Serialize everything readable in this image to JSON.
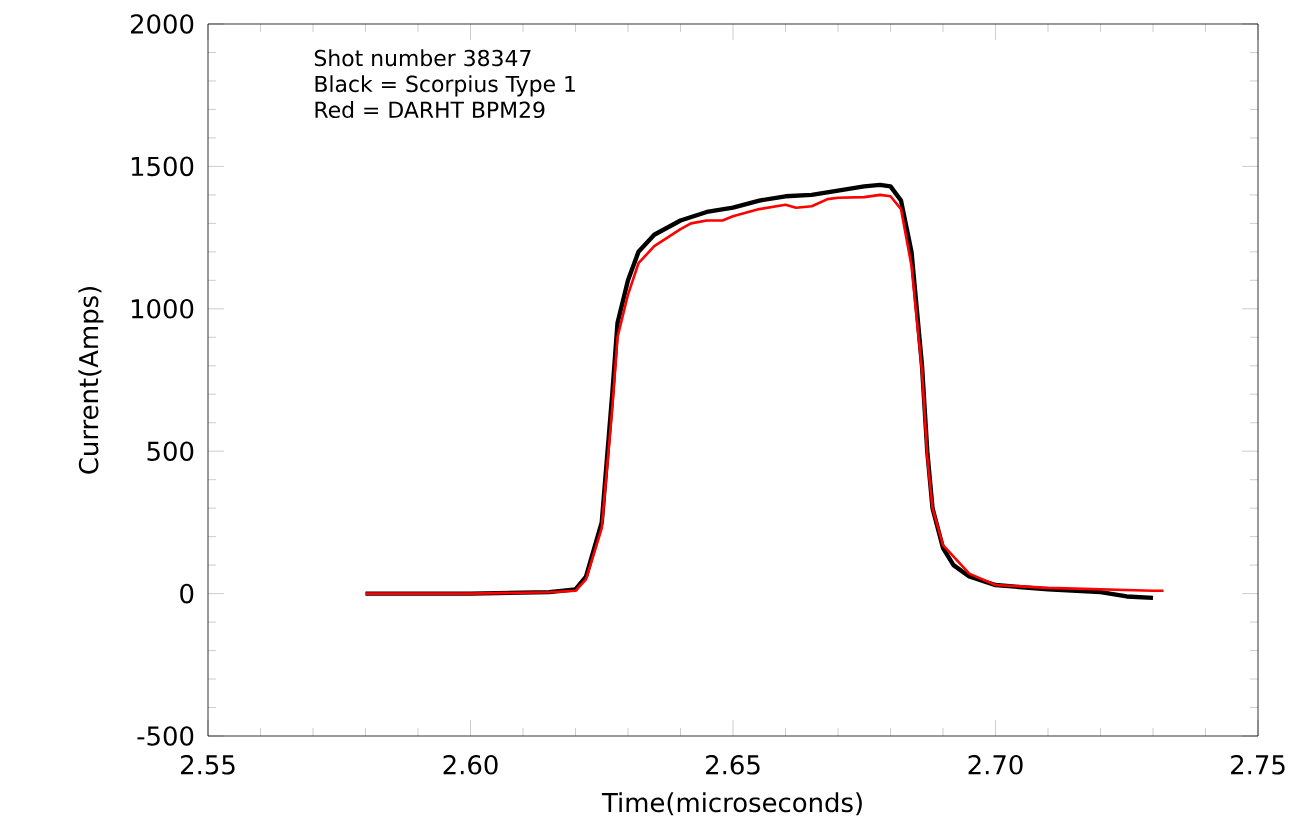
{
  "chart_data": {
    "type": "line",
    "xlabel": "Time(microseconds)",
    "ylabel": "Current(Amps)",
    "annotations": [
      "Shot number 38347",
      "Black = Scorpius Type 1",
      "Red = DARHT BPM29"
    ],
    "xlim": [
      2.55,
      2.75
    ],
    "xticks": [
      {
        "value": 2.55,
        "label": "2.55"
      },
      {
        "value": 2.6,
        "label": "2.60"
      },
      {
        "value": 2.65,
        "label": "2.65"
      },
      {
        "value": 2.7,
        "label": "2.70"
      },
      {
        "value": 2.75,
        "label": "2.75"
      }
    ],
    "ylim": [
      -500,
      2000
    ],
    "yticks": [
      -500,
      0,
      500,
      1000,
      1500,
      2000
    ],
    "grid": false,
    "marker": "none",
    "line_style": "solid",
    "series": [
      {
        "color": "#000000",
        "x": [
          2.58,
          2.6,
          2.615,
          2.62,
          2.622,
          2.625,
          2.627,
          2.628,
          2.63,
          2.632,
          2.635,
          2.64,
          2.645,
          2.65,
          2.655,
          2.66,
          2.665,
          2.67,
          2.675,
          2.678,
          2.68,
          2.682,
          2.684,
          2.686,
          2.687,
          2.688,
          2.69,
          2.692,
          2.695,
          2.7,
          2.71,
          2.72,
          2.725,
          2.73
        ],
        "values": [
          0,
          0,
          5,
          15,
          60,
          250,
          700,
          950,
          1100,
          1200,
          1260,
          1310,
          1340,
          1355,
          1380,
          1395,
          1400,
          1415,
          1430,
          1435,
          1430,
          1380,
          1200,
          800,
          500,
          300,
          160,
          100,
          60,
          30,
          15,
          5,
          -10,
          -15
        ]
      },
      {
        "color": "#ff0000",
        "x": [
          2.58,
          2.6,
          2.615,
          2.62,
          2.622,
          2.625,
          2.627,
          2.628,
          2.63,
          2.632,
          2.635,
          2.64,
          2.642,
          2.645,
          2.648,
          2.65,
          2.655,
          2.66,
          2.662,
          2.665,
          2.668,
          2.67,
          2.675,
          2.678,
          2.68,
          2.682,
          2.684,
          2.686,
          2.687,
          2.688,
          2.69,
          2.695,
          2.7,
          2.71,
          2.72,
          2.73,
          2.732
        ],
        "values": [
          0,
          0,
          5,
          10,
          50,
          230,
          650,
          900,
          1050,
          1160,
          1220,
          1280,
          1300,
          1310,
          1310,
          1325,
          1350,
          1365,
          1355,
          1360,
          1385,
          1390,
          1392,
          1400,
          1395,
          1350,
          1150,
          780,
          480,
          300,
          170,
          70,
          30,
          20,
          15,
          10,
          10
        ]
      }
    ]
  }
}
